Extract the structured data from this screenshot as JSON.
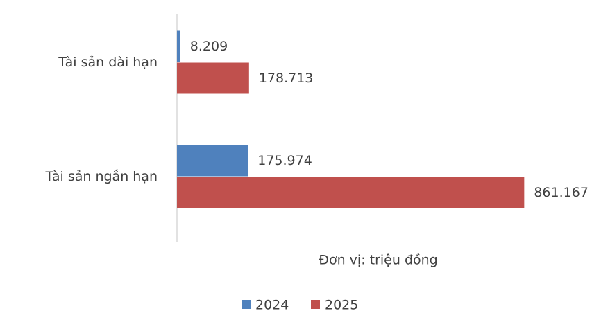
{
  "chart_data": {
    "type": "bar",
    "orientation": "horizontal",
    "categories": [
      "Tài sản dài hạn",
      "Tài sản ngắn hạn"
    ],
    "series": [
      {
        "name": "2024",
        "color": "#4f81bd",
        "values": [
          8209,
          175974
        ],
        "value_labels": [
          "8.209",
          "175.974"
        ]
      },
      {
        "name": "2025",
        "color": "#c0504d",
        "values": [
          178713,
          861167
        ],
        "value_labels": [
          "178.713",
          "861.167"
        ]
      }
    ],
    "xlim": [
      0,
      1000000
    ],
    "annotation": "Đơn vị: triệu đồng",
    "legend": "bottom"
  }
}
